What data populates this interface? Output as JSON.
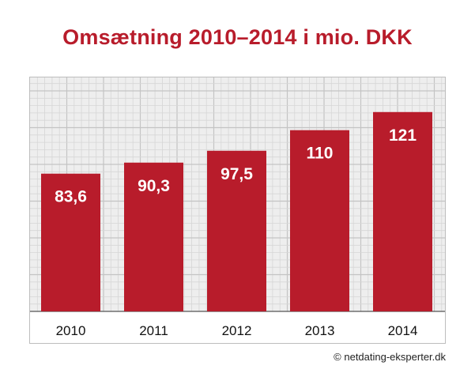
{
  "chart_data": {
    "type": "bar",
    "title": "Omsætning 2010–2014 i mio. DKK",
    "categories": [
      "2010",
      "2011",
      "2012",
      "2013",
      "2014"
    ],
    "values": [
      83.6,
      90.3,
      97.5,
      110,
      121
    ],
    "data_labels": [
      "83,6",
      "90,3",
      "97,5",
      "110",
      "121"
    ],
    "xlabel": "",
    "ylabel": "",
    "ylim": [
      0,
      142
    ],
    "grid": true,
    "bar_color": "#b81c2b",
    "label_color": "#ffffff",
    "grid_color": "#d6d6d6",
    "plot_bg": "#eeeeee"
  },
  "footer": {
    "copyright": "© netdating-eksperter.dk"
  }
}
